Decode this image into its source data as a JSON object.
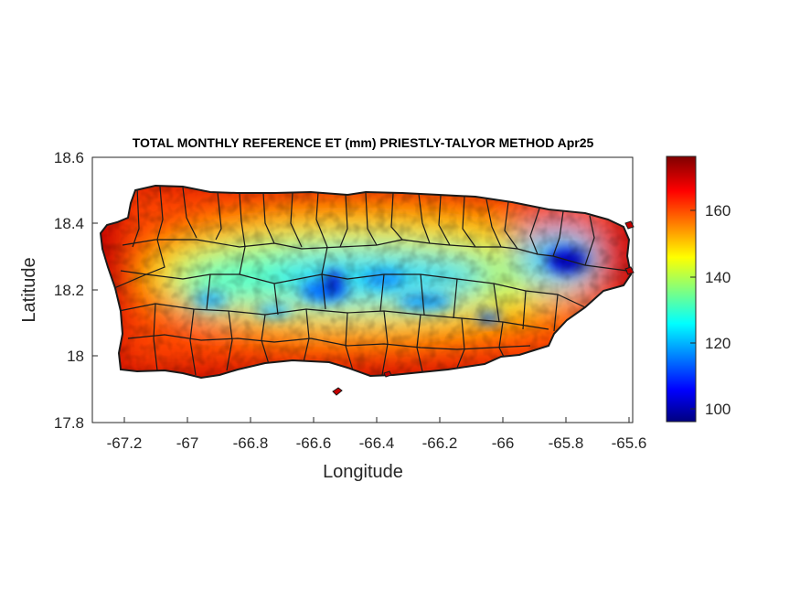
{
  "title": "TOTAL MONTHLY REFERENCE ET (mm) PRIESTLY-TALYOR METHOD Apr25",
  "xlabel": "Longitude",
  "ylabel": "Latitude",
  "x_ticks": [
    "-67.2",
    "-67",
    "-66.8",
    "-66.6",
    "-66.4",
    "-66.2",
    "-66",
    "-65.8",
    "-65.6"
  ],
  "y_ticks": [
    "18.6",
    "18.4",
    "18.2",
    "18",
    "17.8"
  ],
  "colorbar_ticks": [
    "160",
    "140",
    "120",
    "100"
  ],
  "colorbar_colors": [
    "#00007f",
    "#0000ff",
    "#00ffff",
    "#ffff00",
    "#ff0000",
    "#7f0000"
  ],
  "colors": {
    "axis": "#262626",
    "border": "#1a1a1a"
  }
}
